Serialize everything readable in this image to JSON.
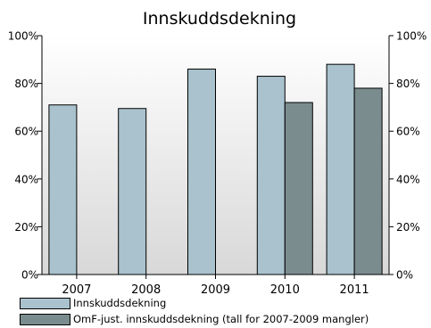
{
  "chart_data": {
    "type": "bar",
    "title": "Innskuddsdekning",
    "categories": [
      "2007",
      "2008",
      "2009",
      "2010",
      "2011"
    ],
    "series": [
      {
        "name": "Innskuddsdekning",
        "values": [
          71,
          69.5,
          86,
          83,
          88
        ],
        "color": "#a9c2cd"
      },
      {
        "name": "OmF-just. innskuddsdekning (tall for 2007-2009 mangler)",
        "values": [
          null,
          null,
          null,
          72,
          78
        ],
        "color": "#7a8c8e"
      }
    ],
    "ylim": [
      0,
      100
    ],
    "yticks": [
      "0%",
      "20%",
      "40%",
      "60%",
      "80%",
      "100%"
    ],
    "ytick_values": [
      0,
      20,
      40,
      60,
      80,
      100
    ],
    "secondary_axis": true,
    "grid": false,
    "background_gradient": [
      "#ffffff",
      "#d8d8d8"
    ],
    "legend_position": "bottom-left"
  }
}
